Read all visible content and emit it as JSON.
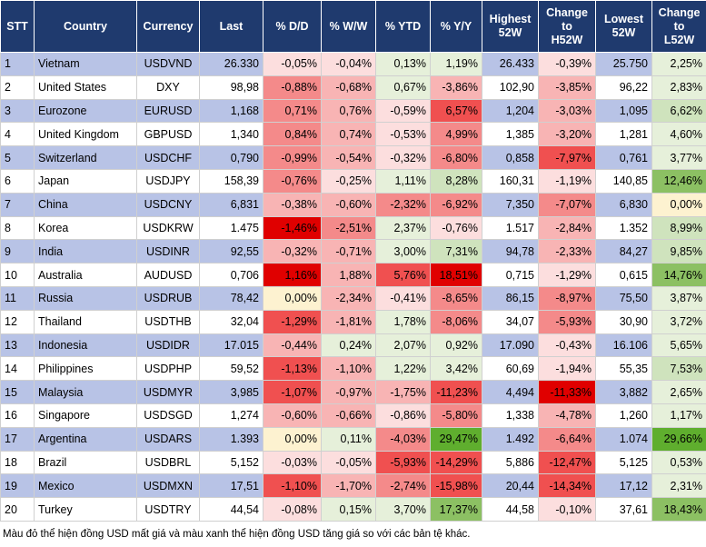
{
  "table": {
    "header": [
      "STT",
      "Country",
      "Currency",
      "Last",
      "% D/D",
      "% W/W",
      "% YTD",
      "% Y/Y",
      "Highest\n52W",
      "Change\nto\nH52W",
      "Lowest\n52W",
      "Change\nto\nL52W"
    ],
    "rows": [
      [
        "1",
        "Vietnam",
        "USDVND",
        "26.330",
        "-0,05%",
        "-0,04%",
        "0,13%",
        "1,19%",
        "26.433",
        "-0,39%",
        "25.750",
        "2,25%"
      ],
      [
        "2",
        "United States",
        "DXY",
        "98,98",
        "-0,88%",
        "-0,68%",
        "0,67%",
        "-3,86%",
        "102,90",
        "-3,85%",
        "96,22",
        "2,83%"
      ],
      [
        "3",
        "Eurozone",
        "EURUSD",
        "1,168",
        "0,71%",
        "0,76%",
        "-0,59%",
        "6,57%",
        "1,204",
        "-3,03%",
        "1,095",
        "6,62%"
      ],
      [
        "4",
        "United Kingdom",
        "GBPUSD",
        "1,340",
        "0,84%",
        "0,74%",
        "-0,53%",
        "4,99%",
        "1,385",
        "-3,20%",
        "1,281",
        "4,60%"
      ],
      [
        "5",
        "Switzerland",
        "USDCHF",
        "0,790",
        "-0,99%",
        "-0,54%",
        "-0,32%",
        "-6,80%",
        "0,858",
        "-7,97%",
        "0,761",
        "3,77%"
      ],
      [
        "6",
        "Japan",
        "USDJPY",
        "158,39",
        "-0,76%",
        "-0,25%",
        "1,11%",
        "8,28%",
        "160,31",
        "-1,19%",
        "140,85",
        "12,46%"
      ],
      [
        "7",
        "China",
        "USDCNY",
        "6,831",
        "-0,38%",
        "-0,60%",
        "-2,32%",
        "-6,92%",
        "7,350",
        "-7,07%",
        "6,830",
        "0,00%"
      ],
      [
        "8",
        "Korea",
        "USDKRW",
        "1.475",
        "-1,46%",
        "-2,51%",
        "2,37%",
        "-0,76%",
        "1.517",
        "-2,84%",
        "1.352",
        "8,99%"
      ],
      [
        "9",
        "India",
        "USDINR",
        "92,55",
        "-0,32%",
        "-0,71%",
        "3,00%",
        "7,31%",
        "94,78",
        "-2,33%",
        "84,27",
        "9,85%"
      ],
      [
        "10",
        "Australia",
        "AUDUSD",
        "0,706",
        "1,16%",
        "1,88%",
        "5,76%",
        "18,51%",
        "0,715",
        "-1,29%",
        "0,615",
        "14,76%"
      ],
      [
        "11",
        "Russia",
        "USDRUB",
        "78,42",
        "0,00%",
        "-2,34%",
        "-0,41%",
        "-8,65%",
        "86,15",
        "-8,97%",
        "75,50",
        "3,87%"
      ],
      [
        "12",
        "Thailand",
        "USDTHB",
        "32,04",
        "-1,29%",
        "-1,81%",
        "1,78%",
        "-8,06%",
        "34,07",
        "-5,93%",
        "30,90",
        "3,72%"
      ],
      [
        "13",
        "Indonesia",
        "USDIDR",
        "17.015",
        "-0,44%",
        "0,24%",
        "2,07%",
        "0,92%",
        "17.090",
        "-0,43%",
        "16.106",
        "5,65%"
      ],
      [
        "14",
        "Philippines",
        "USDPHP",
        "59,52",
        "-1,13%",
        "-1,10%",
        "1,22%",
        "3,42%",
        "60,69",
        "-1,94%",
        "55,35",
        "7,53%"
      ],
      [
        "15",
        "Malaysia",
        "USDMYR",
        "3,985",
        "-1,07%",
        "-0,97%",
        "-1,75%",
        "-11,23%",
        "4,494",
        "-11,33%",
        "3,882",
        "2,65%"
      ],
      [
        "16",
        "Singapore",
        "USDSGD",
        "1,274",
        "-0,60%",
        "-0,66%",
        "-0,86%",
        "-5,80%",
        "1,338",
        "-4,78%",
        "1,260",
        "1,17%"
      ],
      [
        "17",
        "Argentina",
        "USDARS",
        "1.393",
        "0,00%",
        "0,11%",
        "-4,03%",
        "29,47%",
        "1.492",
        "-6,64%",
        "1.074",
        "29,66%"
      ],
      [
        "18",
        "Brazil",
        "USDBRL",
        "5,152",
        "-0,03%",
        "-0,05%",
        "-5,93%",
        "-14,29%",
        "5,886",
        "-12,47%",
        "5,125",
        "0,53%"
      ],
      [
        "19",
        "Mexico",
        "USDMXN",
        "17,51",
        "-1,10%",
        "-1,70%",
        "-2,74%",
        "-15,98%",
        "20,44",
        "-14,34%",
        "17,12",
        "2,31%"
      ],
      [
        "20",
        "Turkey",
        "USDTRY",
        "44,54",
        "-0,08%",
        "0,15%",
        "3,70%",
        "17,37%",
        "44,58",
        "-0,10%",
        "37,61",
        "18,43%"
      ]
    ],
    "colored_columns": [
      4,
      5,
      6,
      7,
      9,
      11
    ],
    "cell_colors": [
      [
        "#fcdede",
        "#fcdede",
        "#e6f0da",
        "#e6f0da",
        "#fcdede",
        "#e6f0da"
      ],
      [
        "#f48a8a",
        "#f8b4b4",
        "#e6f0da",
        "#f8b4b4",
        "#f8b4b4",
        "#e6f0da"
      ],
      [
        "#f48a8a",
        "#f8b4b4",
        "#fcdede",
        "#f05050",
        "#f8b4b4",
        "#cfe3bd"
      ],
      [
        "#f48a8a",
        "#f8b4b4",
        "#fcdede",
        "#f48a8a",
        "#f8b4b4",
        "#e6f0da"
      ],
      [
        "#f48a8a",
        "#f8b4b4",
        "#fcdede",
        "#f48a8a",
        "#f05050",
        "#e6f0da"
      ],
      [
        "#f48a8a",
        "#fcdede",
        "#e6f0da",
        "#cfe3bd",
        "#fcdede",
        "#8cc063"
      ],
      [
        "#f8b4b4",
        "#f8b4b4",
        "#f48a8a",
        "#f48a8a",
        "#f48a8a",
        "#fdf2d0"
      ],
      [
        "#e00000",
        "#f48a8a",
        "#e6f0da",
        "#fcdede",
        "#f8b4b4",
        "#cfe3bd"
      ],
      [
        "#f8b4b4",
        "#f8b4b4",
        "#e6f0da",
        "#cfe3bd",
        "#f8b4b4",
        "#cfe3bd"
      ],
      [
        "#e00000",
        "#f8b4b4",
        "#f05050",
        "#e00000",
        "#fcdede",
        "#8cc063"
      ],
      [
        "#fdf2d0",
        "#f8b4b4",
        "#fcdede",
        "#f48a8a",
        "#f48a8a",
        "#e6f0da"
      ],
      [
        "#f05050",
        "#f8b4b4",
        "#e6f0da",
        "#f48a8a",
        "#f48a8a",
        "#e6f0da"
      ],
      [
        "#f8b4b4",
        "#e6f0da",
        "#e6f0da",
        "#e6f0da",
        "#fcdede",
        "#e6f0da"
      ],
      [
        "#f05050",
        "#f8b4b4",
        "#e6f0da",
        "#e6f0da",
        "#fcdede",
        "#cfe3bd"
      ],
      [
        "#f05050",
        "#f8b4b4",
        "#f8b4b4",
        "#f05050",
        "#e00000",
        "#e6f0da"
      ],
      [
        "#f8b4b4",
        "#f8b4b4",
        "#fcdede",
        "#f48a8a",
        "#f8b4b4",
        "#e6f0da"
      ],
      [
        "#fdf2d0",
        "#e6f0da",
        "#f48a8a",
        "#5fae2e",
        "#f48a8a",
        "#5fae2e"
      ],
      [
        "#fcdede",
        "#fcdede",
        "#f05050",
        "#f05050",
        "#f05050",
        "#e6f0da"
      ],
      [
        "#f05050",
        "#f8b4b4",
        "#f48a8a",
        "#f05050",
        "#f05050",
        "#e6f0da"
      ],
      [
        "#fcdede",
        "#e6f0da",
        "#e6f0da",
        "#8cc063",
        "#fcdede",
        "#8cc063"
      ]
    ],
    "footnote": "Màu đỏ thể hiện đồng USD mất giá và màu xanh thể hiện đồng USD tăng giá so với các bản tệ khác."
  }
}
